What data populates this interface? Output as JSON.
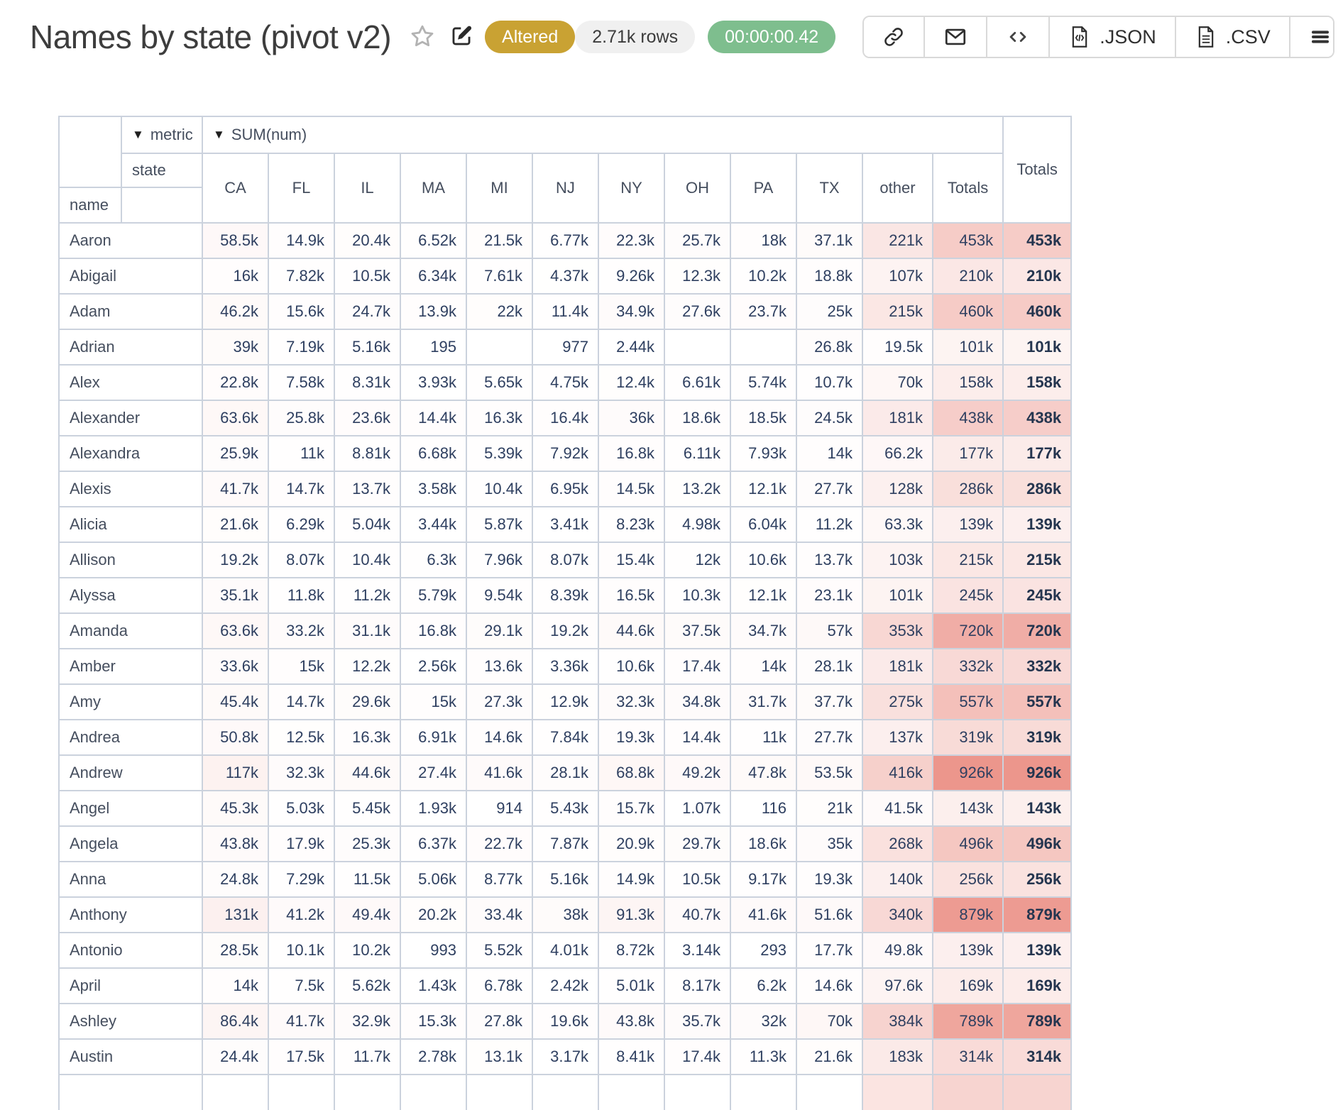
{
  "header": {
    "title": "Names by state (pivot v2)",
    "altered_badge": "Altered",
    "rows_badge": "2.71k rows",
    "timer_badge": "00:00:00.42",
    "toolbar": {
      "icons": [
        "link-icon",
        "mail-icon",
        "code-icon",
        "json-file-icon",
        "csv-file-icon",
        "hamburger-icon"
      ],
      "json_label": ".JSON",
      "csv_label": ".CSV"
    }
  },
  "colors": {
    "altered_bg": "#c9a233",
    "timer_bg": "#7ebe8e",
    "heat_rgb": [
      236,
      150,
      140
    ],
    "border": "#cbd2dd",
    "data_text": "#2e3f60"
  },
  "pivot": {
    "dropdown_glyph": "▼",
    "metric_label": "metric",
    "metric_value": "SUM(num)",
    "state_label": "state",
    "name_label": "name",
    "totals_label": "Totals",
    "columns": [
      "CA",
      "FL",
      "IL",
      "MA",
      "MI",
      "NJ",
      "NY",
      "OH",
      "PA",
      "TX",
      "other",
      "Totals"
    ],
    "max_value": 926000,
    "rows": [
      {
        "name": "Aaron",
        "values": [
          "58.5k",
          "14.9k",
          "20.4k",
          "6.52k",
          "21.5k",
          "6.77k",
          "22.3k",
          "25.7k",
          "18k",
          "37.1k",
          "221k",
          "453k"
        ],
        "total": "453k"
      },
      {
        "name": "Abigail",
        "values": [
          "16k",
          "7.82k",
          "10.5k",
          "6.34k",
          "7.61k",
          "4.37k",
          "9.26k",
          "12.3k",
          "10.2k",
          "18.8k",
          "107k",
          "210k"
        ],
        "total": "210k"
      },
      {
        "name": "Adam",
        "values": [
          "46.2k",
          "15.6k",
          "24.7k",
          "13.9k",
          "22k",
          "11.4k",
          "34.9k",
          "27.6k",
          "23.7k",
          "25k",
          "215k",
          "460k"
        ],
        "total": "460k"
      },
      {
        "name": "Adrian",
        "values": [
          "39k",
          "7.19k",
          "5.16k",
          "195",
          "",
          "977",
          "2.44k",
          "",
          "",
          "26.8k",
          "19.5k",
          "101k"
        ],
        "total": "101k"
      },
      {
        "name": "Alex",
        "values": [
          "22.8k",
          "7.58k",
          "8.31k",
          "3.93k",
          "5.65k",
          "4.75k",
          "12.4k",
          "6.61k",
          "5.74k",
          "10.7k",
          "70k",
          "158k"
        ],
        "total": "158k"
      },
      {
        "name": "Alexander",
        "values": [
          "63.6k",
          "25.8k",
          "23.6k",
          "14.4k",
          "16.3k",
          "16.4k",
          "36k",
          "18.6k",
          "18.5k",
          "24.5k",
          "181k",
          "438k"
        ],
        "total": "438k"
      },
      {
        "name": "Alexandra",
        "values": [
          "25.9k",
          "11k",
          "8.81k",
          "6.68k",
          "5.39k",
          "7.92k",
          "16.8k",
          "6.11k",
          "7.93k",
          "14k",
          "66.2k",
          "177k"
        ],
        "total": "177k"
      },
      {
        "name": "Alexis",
        "values": [
          "41.7k",
          "14.7k",
          "13.7k",
          "3.58k",
          "10.4k",
          "6.95k",
          "14.5k",
          "13.2k",
          "12.1k",
          "27.7k",
          "128k",
          "286k"
        ],
        "total": "286k"
      },
      {
        "name": "Alicia",
        "values": [
          "21.6k",
          "6.29k",
          "5.04k",
          "3.44k",
          "5.87k",
          "3.41k",
          "8.23k",
          "4.98k",
          "6.04k",
          "11.2k",
          "63.3k",
          "139k"
        ],
        "total": "139k"
      },
      {
        "name": "Allison",
        "values": [
          "19.2k",
          "8.07k",
          "10.4k",
          "6.3k",
          "7.96k",
          "8.07k",
          "15.4k",
          "12k",
          "10.6k",
          "13.7k",
          "103k",
          "215k"
        ],
        "total": "215k"
      },
      {
        "name": "Alyssa",
        "values": [
          "35.1k",
          "11.8k",
          "11.2k",
          "5.79k",
          "9.54k",
          "8.39k",
          "16.5k",
          "10.3k",
          "12.1k",
          "23.1k",
          "101k",
          "245k"
        ],
        "total": "245k"
      },
      {
        "name": "Amanda",
        "values": [
          "63.6k",
          "33.2k",
          "31.1k",
          "16.8k",
          "29.1k",
          "19.2k",
          "44.6k",
          "37.5k",
          "34.7k",
          "57k",
          "353k",
          "720k"
        ],
        "total": "720k"
      },
      {
        "name": "Amber",
        "values": [
          "33.6k",
          "15k",
          "12.2k",
          "2.56k",
          "13.6k",
          "3.36k",
          "10.6k",
          "17.4k",
          "14k",
          "28.1k",
          "181k",
          "332k"
        ],
        "total": "332k"
      },
      {
        "name": "Amy",
        "values": [
          "45.4k",
          "14.7k",
          "29.6k",
          "15k",
          "27.3k",
          "12.9k",
          "32.3k",
          "34.8k",
          "31.7k",
          "37.7k",
          "275k",
          "557k"
        ],
        "total": "557k"
      },
      {
        "name": "Andrea",
        "values": [
          "50.8k",
          "12.5k",
          "16.3k",
          "6.91k",
          "14.6k",
          "7.84k",
          "19.3k",
          "14.4k",
          "11k",
          "27.7k",
          "137k",
          "319k"
        ],
        "total": "319k"
      },
      {
        "name": "Andrew",
        "values": [
          "117k",
          "32.3k",
          "44.6k",
          "27.4k",
          "41.6k",
          "28.1k",
          "68.8k",
          "49.2k",
          "47.8k",
          "53.5k",
          "416k",
          "926k"
        ],
        "total": "926k"
      },
      {
        "name": "Angel",
        "values": [
          "45.3k",
          "5.03k",
          "5.45k",
          "1.93k",
          "914",
          "5.43k",
          "15.7k",
          "1.07k",
          "116",
          "21k",
          "41.5k",
          "143k"
        ],
        "total": "143k"
      },
      {
        "name": "Angela",
        "values": [
          "43.8k",
          "17.9k",
          "25.3k",
          "6.37k",
          "22.7k",
          "7.87k",
          "20.9k",
          "29.7k",
          "18.6k",
          "35k",
          "268k",
          "496k"
        ],
        "total": "496k"
      },
      {
        "name": "Anna",
        "values": [
          "24.8k",
          "7.29k",
          "11.5k",
          "5.06k",
          "8.77k",
          "5.16k",
          "14.9k",
          "10.5k",
          "9.17k",
          "19.3k",
          "140k",
          "256k"
        ],
        "total": "256k"
      },
      {
        "name": "Anthony",
        "values": [
          "131k",
          "41.2k",
          "49.4k",
          "20.2k",
          "33.4k",
          "38k",
          "91.3k",
          "40.7k",
          "41.6k",
          "51.6k",
          "340k",
          "879k"
        ],
        "total": "879k"
      },
      {
        "name": "Antonio",
        "values": [
          "28.5k",
          "10.1k",
          "10.2k",
          "993",
          "5.52k",
          "4.01k",
          "8.72k",
          "3.14k",
          "293",
          "17.7k",
          "49.8k",
          "139k"
        ],
        "total": "139k"
      },
      {
        "name": "April",
        "values": [
          "14k",
          "7.5k",
          "5.62k",
          "1.43k",
          "6.78k",
          "2.42k",
          "5.01k",
          "8.17k",
          "6.2k",
          "14.6k",
          "97.6k",
          "169k"
        ],
        "total": "169k"
      },
      {
        "name": "Ashley",
        "values": [
          "86.4k",
          "41.7k",
          "32.9k",
          "15.3k",
          "27.8k",
          "19.6k",
          "43.8k",
          "35.7k",
          "32k",
          "70k",
          "384k",
          "789k"
        ],
        "total": "789k"
      },
      {
        "name": "Austin",
        "values": [
          "24.4k",
          "17.5k",
          "11.7k",
          "2.78k",
          "13.1k",
          "3.17k",
          "8.41k",
          "17.4k",
          "11.3k",
          "21.6k",
          "183k",
          "314k"
        ],
        "total": "314k"
      }
    ]
  }
}
